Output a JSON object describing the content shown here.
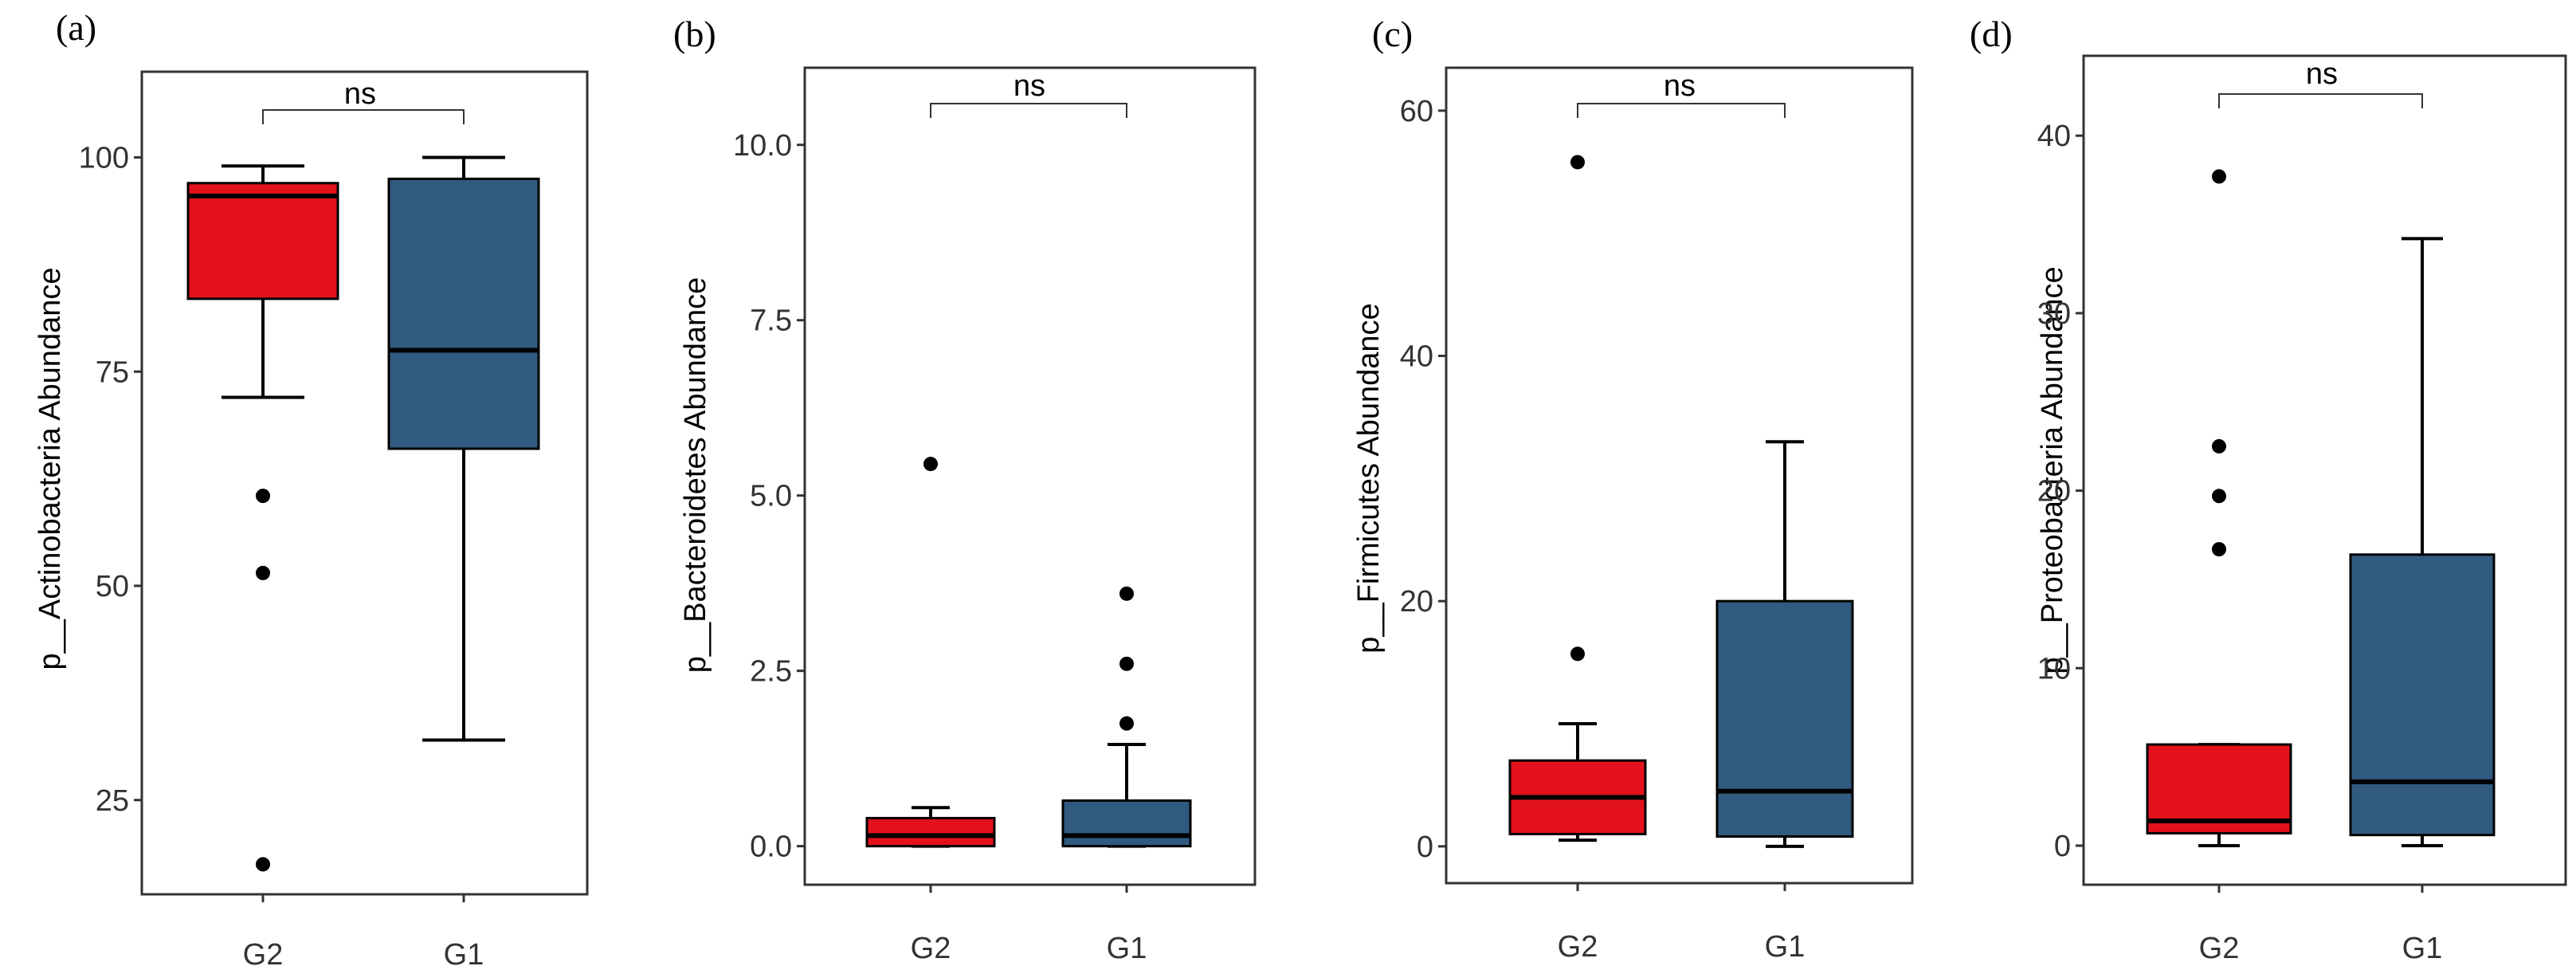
{
  "chart_data": [
    {
      "panel": "(a)",
      "type": "boxplot",
      "ylabel": "p__Actinobacteria Abundance",
      "categories": [
        "G2",
        "G1"
      ],
      "yticks": [
        25,
        50,
        75,
        100
      ],
      "ytick_labels": [
        "25",
        "50",
        "75",
        "100"
      ],
      "ylim": [
        14,
        110
      ],
      "significance": "ns",
      "boxes": [
        {
          "group": "G2",
          "color": "#e3111b",
          "whisker_low": 72,
          "q1": 83.5,
          "median": 95.5,
          "q3": 97,
          "whisker_high": 99,
          "outliers": [
            60.5,
            51.5,
            17.5
          ]
        },
        {
          "group": "G1",
          "color": "#305a80",
          "whisker_low": 32,
          "q1": 66,
          "median": 77.5,
          "q3": 97.5,
          "whisker_high": 100,
          "outliers": []
        }
      ]
    },
    {
      "panel": "(b)",
      "type": "boxplot",
      "ylabel": "p__Bacteroidetes Abundance",
      "categories": [
        "G2",
        "G1"
      ],
      "yticks": [
        0,
        2.5,
        5,
        7.5,
        10
      ],
      "ytick_labels": [
        "0.0",
        "2.5",
        "5.0",
        "7.5",
        "10.0"
      ],
      "ylim": [
        -0.55,
        11.1
      ],
      "significance": "ns",
      "boxes": [
        {
          "group": "G2",
          "color": "#e3111b",
          "whisker_low": 0,
          "q1": 0,
          "median": 0.15,
          "q3": 0.4,
          "whisker_high": 0.55,
          "outliers": [
            5.45
          ]
        },
        {
          "group": "G1",
          "color": "#305a80",
          "whisker_low": 0,
          "q1": 0,
          "median": 0.15,
          "q3": 0.65,
          "whisker_high": 1.45,
          "outliers": [
            3.6,
            2.6,
            1.75
          ]
        }
      ]
    },
    {
      "panel": "(c)",
      "type": "boxplot",
      "ylabel": "p__Firmicutes Abundance",
      "categories": [
        "G2",
        "G1"
      ],
      "yticks": [
        0,
        20,
        40,
        60
      ],
      "ytick_labels": [
        "0",
        "20",
        "40",
        "60"
      ],
      "ylim": [
        -3,
        63.5
      ],
      "significance": "ns",
      "boxes": [
        {
          "group": "G2",
          "color": "#e3111b",
          "whisker_low": 0.5,
          "q1": 1,
          "median": 4,
          "q3": 7,
          "whisker_high": 10,
          "outliers": [
            55.8,
            15.7
          ]
        },
        {
          "group": "G1",
          "color": "#305a80",
          "whisker_low": 0,
          "q1": 0.8,
          "median": 4.5,
          "q3": 20,
          "whisker_high": 33,
          "outliers": []
        }
      ]
    },
    {
      "panel": "(d)",
      "type": "boxplot",
      "ylabel": "p__Proteobacteria Abundance",
      "categories": [
        "G2",
        "G1"
      ],
      "yticks": [
        0,
        10,
        20,
        30,
        40
      ],
      "ytick_labels": [
        "0",
        "10",
        "20",
        "30",
        "40"
      ],
      "ylim": [
        -2.2,
        44.5
      ],
      "significance": "ns",
      "boxes": [
        {
          "group": "G2",
          "color": "#e3111b",
          "whisker_low": 0,
          "q1": 0.7,
          "median": 1.4,
          "q3": 5.7,
          "whisker_high": 5.7,
          "outliers": [
            37.7,
            22.5,
            19.7,
            16.7
          ]
        },
        {
          "group": "G1",
          "color": "#305a80",
          "whisker_low": 0,
          "q1": 0.6,
          "median": 3.6,
          "q3": 16.4,
          "whisker_high": 34.2,
          "outliers": []
        }
      ]
    }
  ]
}
